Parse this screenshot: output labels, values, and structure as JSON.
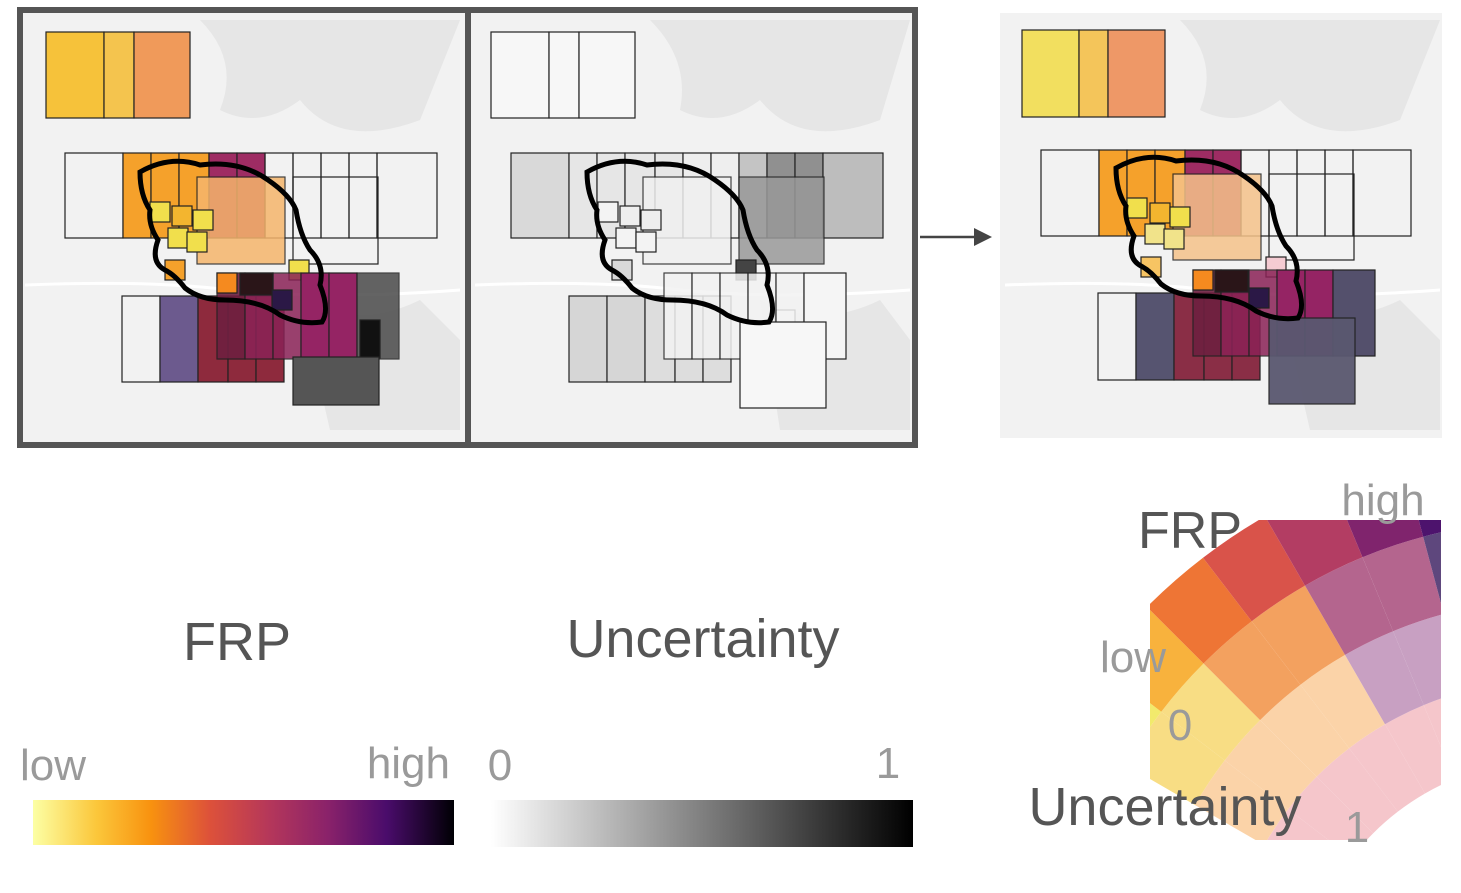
{
  "legend_frp": {
    "title": "FRP",
    "low_label": "low",
    "high_label": "high"
  },
  "legend_uncertainty": {
    "title": "Uncertainty",
    "min_label": "0",
    "max_label": "1"
  },
  "bivariate_legend": {
    "frp_title": "FRP",
    "uncertainty_title": "Uncertainty",
    "low_label": "low",
    "high_label": "high",
    "zero_label": "0",
    "one_label": "1"
  },
  "colors": {
    "frp_stops": [
      "#f7f28c",
      "#fbd34f",
      "#f8a012",
      "#ee6c23",
      "#d74745",
      "#b53558",
      "#8f2463",
      "#651a6e",
      "#3d0f6e",
      "#140b34",
      "#000004"
    ],
    "uncertainty_light": "#ffffff",
    "uncertainty_dark": "#000000",
    "map_background": "#ececec",
    "frame_border": "#555555",
    "outline": "#000000",
    "text": "#555555"
  }
}
